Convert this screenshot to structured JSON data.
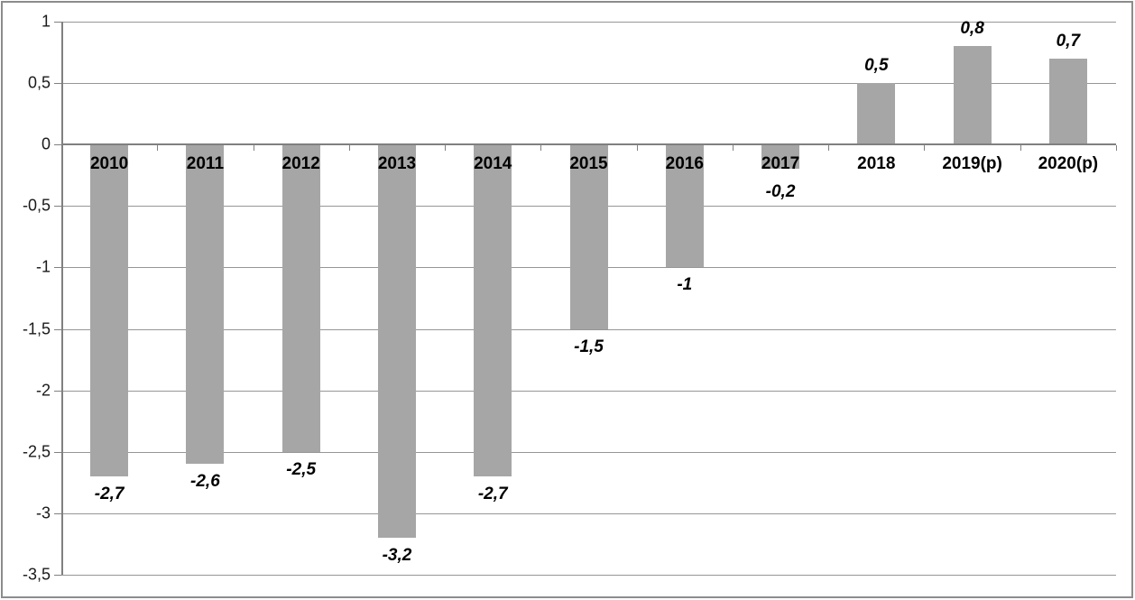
{
  "chart_data": {
    "type": "bar",
    "title": "",
    "xlabel": "",
    "ylabel": "",
    "categories": [
      "2010",
      "2011",
      "2012",
      "2013",
      "2014",
      "2015",
      "2016",
      "2017",
      "2018",
      "2019(p)",
      "2020(p)"
    ],
    "values": [
      -2.7,
      -2.6,
      -2.5,
      -3.2,
      -2.7,
      -1.5,
      -1,
      -0.2,
      0.5,
      0.8,
      0.7
    ],
    "value_labels": [
      "-2,7",
      "-2,6",
      "-2,5",
      "-3,2",
      "-2,7",
      "-1,5",
      "-1",
      "-0,2",
      "0,5",
      "0,8",
      "0,7"
    ],
    "ylim": [
      -3.5,
      1
    ],
    "ytick_step": 0.5,
    "yticklabels": [
      "1",
      "0,5",
      "0",
      "-0,5",
      "-1",
      "-1,5",
      "-2",
      "-2,5",
      "-3",
      "-3,5"
    ],
    "grid": "horizontal",
    "legend": "none",
    "colors": {
      "bar": "#a6a6a6",
      "gridline": "#969696",
      "axis": "#808080",
      "text": "#1a1a1a",
      "frame_border": "#8c8c8c",
      "background": "#ffffff"
    }
  }
}
